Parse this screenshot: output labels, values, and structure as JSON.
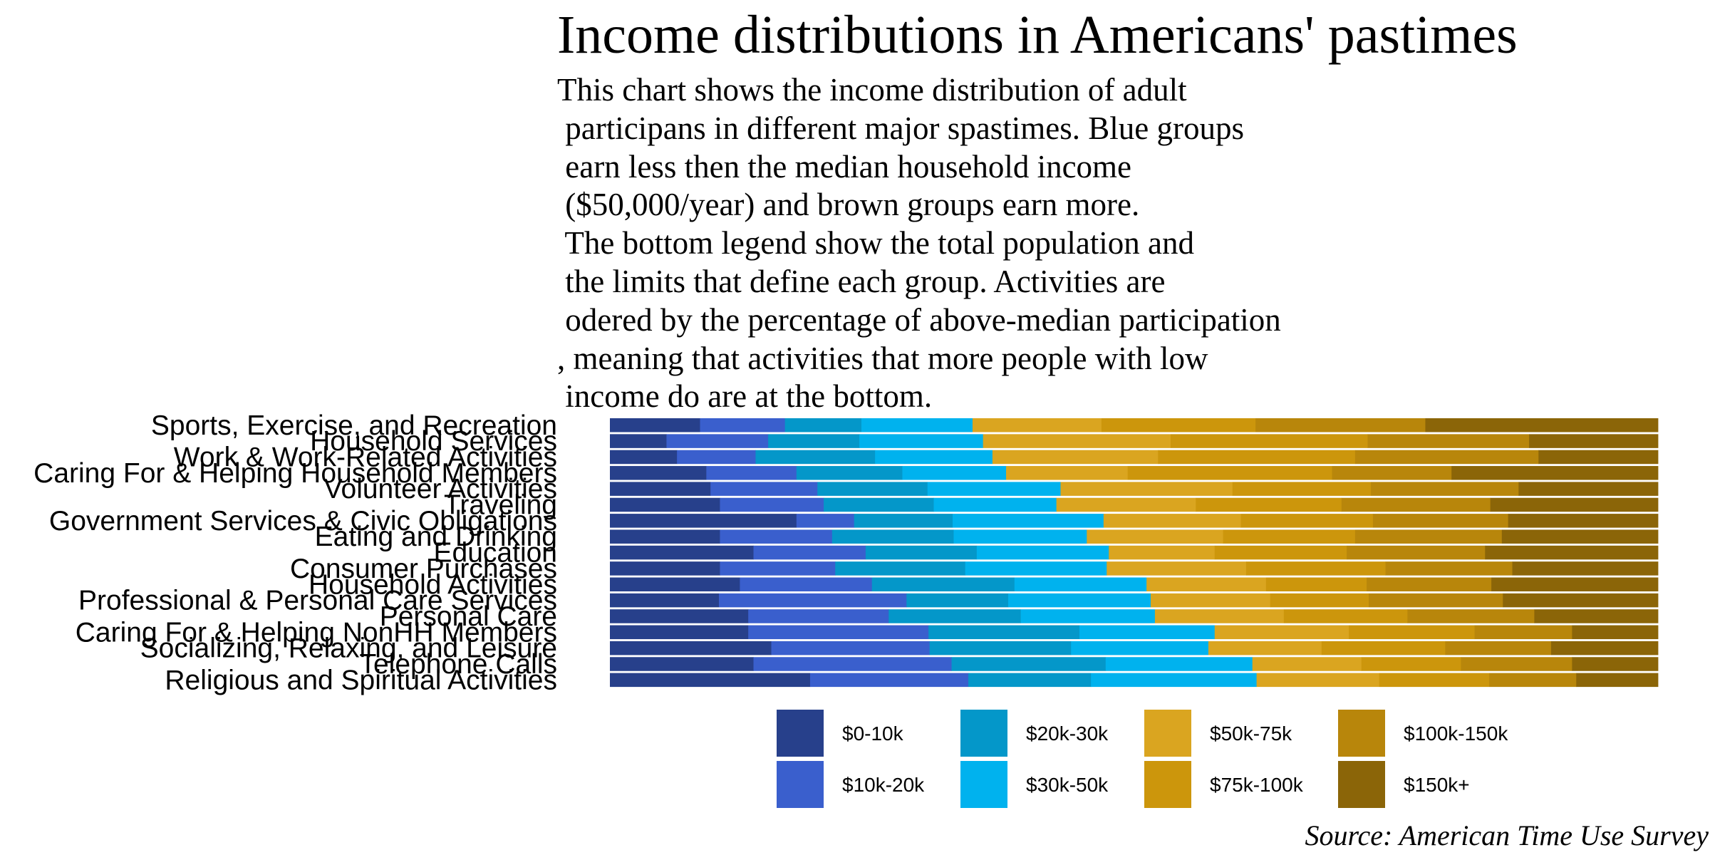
{
  "title": "Income distributions in Americans' pastimes",
  "subtitle_lines": [
    "This chart shows the income distribution of adult",
    " participans in different major spastimes. Blue groups",
    " earn less then the median household income",
    " ($50,000/year) and brown groups earn more.",
    " The bottom legend show the total population and",
    " the limits that define each group. Activities are",
    " odered by the percentage of above-median participation",
    ", meaning that activities that more people with low",
    " income do are at the bottom."
  ],
  "source": "Source: American Time Use Survey",
  "colors": {
    "$0-10k": "#27408b",
    "$10k-20k": "#3a5fcd",
    "$20k-30k": "#0497c9",
    "$30k-50k": "#00b2ee",
    "$50k-75k": "#daa520",
    "$75k-100k": "#cc960c",
    "$100k-150k": "#b8860b",
    "$150k+": "#8b6508"
  },
  "chart_data": {
    "type": "bar",
    "orientation": "horizontal",
    "stacked": "percent",
    "xlim": [
      0,
      100
    ],
    "categories": [
      "Sports, Exercise, and Recreation",
      "Household Services",
      "Work & Work-Related Activities",
      "Caring For & Helping Household Members",
      "Volunteer Activities",
      "Traveling",
      "Government Services & Civic Obligations",
      "Eating and Drinking",
      "Education",
      "Consumer Purchases",
      "Household Activities",
      "Professional & Personal Care Services",
      "Personal Care",
      "Caring For & Helping NonHH Members",
      "Socializing, Relaxing, and Leisure",
      "Telephone Calls",
      "Religious and Spiritual Activities"
    ],
    "series": [
      {
        "name": "$0-10k",
        "values": [
          8.6,
          5.4,
          6.4,
          9.2,
          9.6,
          10.5,
          17.8,
          10.5,
          13.7,
          10.5,
          12.4,
          10.4,
          13.2,
          13.2,
          15.4,
          13.7,
          19.1
        ]
      },
      {
        "name": "$10k-20k",
        "values": [
          8.1,
          9.7,
          7.5,
          8.6,
          10.2,
          9.9,
          5.5,
          10.7,
          10.7,
          11.0,
          12.6,
          17.9,
          13.4,
          17.2,
          15.1,
          18.9,
          15.1
        ]
      },
      {
        "name": "$20k-30k",
        "values": [
          7.3,
          8.7,
          11.4,
          10.1,
          10.5,
          10.5,
          9.4,
          11.6,
          10.6,
          12.4,
          13.6,
          9.7,
          12.6,
          14.4,
          13.5,
          14.7,
          11.7
        ]
      },
      {
        "name": "$30k-50k",
        "values": [
          10.6,
          11.8,
          11.2,
          9.9,
          12.7,
          11.7,
          14.4,
          12.7,
          12.6,
          13.5,
          12.6,
          13.6,
          12.8,
          12.9,
          13.1,
          14.0,
          15.8
        ]
      },
      {
        "name": "$50k-75k",
        "values": [
          12.3,
          17.9,
          15.8,
          11.6,
          16.4,
          13.3,
          13.1,
          13.0,
          10.1,
          13.3,
          11.4,
          11.4,
          12.3,
          12.8,
          10.8,
          10.4,
          11.7
        ]
      },
      {
        "name": "$75k-100k",
        "values": [
          14.7,
          18.8,
          18.8,
          19.5,
          13.2,
          13.9,
          12.6,
          12.6,
          12.6,
          13.3,
          9.6,
          9.4,
          11.8,
          12.0,
          11.8,
          9.5,
          10.5
        ]
      },
      {
        "name": "$100k-150k",
        "values": [
          16.2,
          15.4,
          17.5,
          11.4,
          14.1,
          14.2,
          12.9,
          14.0,
          13.2,
          12.1,
          11.9,
          12.8,
          12.1,
          9.3,
          10.1,
          10.6,
          8.3
        ]
      },
      {
        "name": "$150k+",
        "values": [
          22.2,
          12.3,
          11.4,
          19.7,
          13.3,
          16.0,
          14.3,
          14.9,
          16.5,
          13.9,
          15.9,
          14.8,
          11.8,
          8.2,
          10.2,
          8.2,
          7.8
        ]
      }
    ],
    "legend_position": "bottom"
  }
}
